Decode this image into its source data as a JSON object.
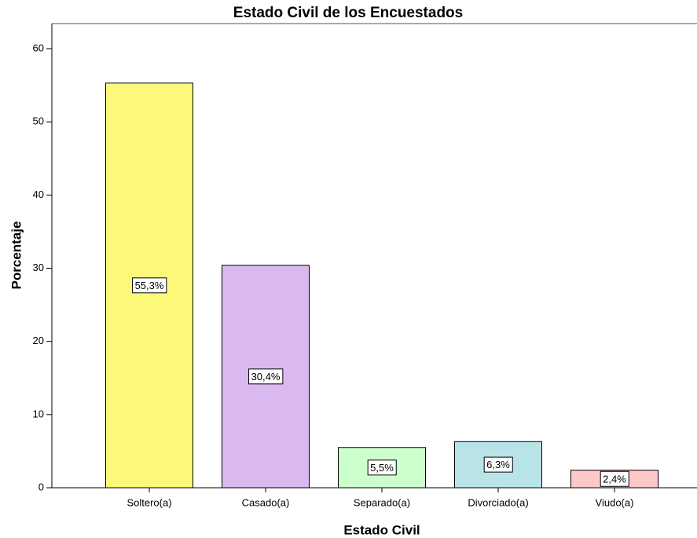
{
  "chart_data": {
    "type": "bar",
    "title": "Estado Civil de los Encuestados",
    "x_label": "Estado Civil",
    "y_label": "Porcentaje",
    "categories": [
      "Soltero(a)",
      "Casado(a)",
      "Separado(a)",
      "Divorciado(a)",
      "Viudo(a)"
    ],
    "values": [
      55.3,
      30.4,
      5.5,
      6.3,
      2.4
    ],
    "value_labels": [
      "55,3%",
      "30,4%",
      "5,5%",
      "6,3%",
      "2,4%"
    ],
    "colors": [
      "#fbf87a",
      "#dab9f0",
      "#ccffcc",
      "#b8e4e8",
      "#ffc8c8"
    ],
    "ylim": [
      0,
      60
    ],
    "yticks": [
      0,
      10,
      20,
      30,
      40,
      50,
      60
    ],
    "grid": false
  }
}
